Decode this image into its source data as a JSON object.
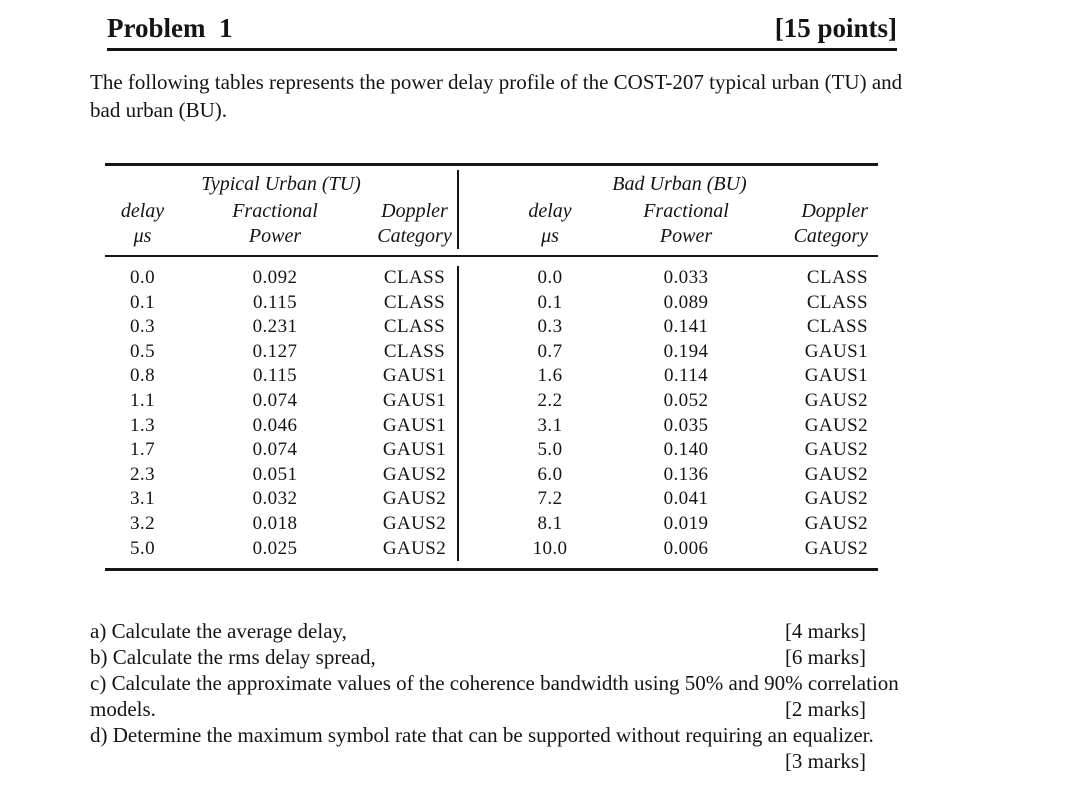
{
  "header": {
    "title": "Problem  1",
    "points": "[15 points]"
  },
  "intro": {
    "line1": "The following tables represents the power delay profile of the COST-207 typical urban (TU) and",
    "line2": "bad urban (BU)."
  },
  "table": {
    "col_headers": {
      "delay_l1": "delay",
      "delay_l2": "μs",
      "frac_l1": "Fractional",
      "frac_l2": "Power",
      "dop_l1": "Doppler",
      "dop_l2": "Category"
    },
    "tu": {
      "title": "Typical Urban (TU)",
      "rows": [
        {
          "delay": "0.0",
          "power": "0.092",
          "doppler": "CLASS"
        },
        {
          "delay": "0.1",
          "power": "0.115",
          "doppler": "CLASS"
        },
        {
          "delay": "0.3",
          "power": "0.231",
          "doppler": "CLASS"
        },
        {
          "delay": "0.5",
          "power": "0.127",
          "doppler": "CLASS"
        },
        {
          "delay": "0.8",
          "power": "0.115",
          "doppler": "GAUS1"
        },
        {
          "delay": "1.1",
          "power": "0.074",
          "doppler": "GAUS1"
        },
        {
          "delay": "1.3",
          "power": "0.046",
          "doppler": "GAUS1"
        },
        {
          "delay": "1.7",
          "power": "0.074",
          "doppler": "GAUS1"
        },
        {
          "delay": "2.3",
          "power": "0.051",
          "doppler": "GAUS2"
        },
        {
          "delay": "3.1",
          "power": "0.032",
          "doppler": "GAUS2"
        },
        {
          "delay": "3.2",
          "power": "0.018",
          "doppler": "GAUS2"
        },
        {
          "delay": "5.0",
          "power": "0.025",
          "doppler": "GAUS2"
        }
      ]
    },
    "bu": {
      "title": "Bad Urban (BU)",
      "rows": [
        {
          "delay": "0.0",
          "power": "0.033",
          "doppler": "CLASS"
        },
        {
          "delay": "0.1",
          "power": "0.089",
          "doppler": "CLASS"
        },
        {
          "delay": "0.3",
          "power": "0.141",
          "doppler": "CLASS"
        },
        {
          "delay": "0.7",
          "power": "0.194",
          "doppler": "GAUS1"
        },
        {
          "delay": "1.6",
          "power": "0.114",
          "doppler": "GAUS1"
        },
        {
          "delay": "2.2",
          "power": "0.052",
          "doppler": "GAUS2"
        },
        {
          "delay": "3.1",
          "power": "0.035",
          "doppler": "GAUS2"
        },
        {
          "delay": "5.0",
          "power": "0.140",
          "doppler": "GAUS2"
        },
        {
          "delay": "6.0",
          "power": "0.136",
          "doppler": "GAUS2"
        },
        {
          "delay": "7.2",
          "power": "0.041",
          "doppler": "GAUS2"
        },
        {
          "delay": "8.1",
          "power": "0.019",
          "doppler": "GAUS2"
        },
        {
          "delay": "10.0",
          "power": "0.006",
          "doppler": "GAUS2"
        }
      ]
    }
  },
  "questions": {
    "rows": [
      {
        "text": "a) Calculate the average delay,",
        "marks": "[4 marks]"
      },
      {
        "text": "b) Calculate the rms delay spread,",
        "marks": "[6 marks]"
      },
      {
        "text": "c) Calculate the approximate values of the coherence bandwidth using 50% and 90% correlation",
        "marks": ""
      },
      {
        "text": "models.",
        "marks": "[2 marks]"
      },
      {
        "text": "d) Determine the maximum symbol rate that can be supported without requiring an equalizer.",
        "marks": ""
      },
      {
        "text": "",
        "marks": "[3 marks]"
      }
    ]
  }
}
